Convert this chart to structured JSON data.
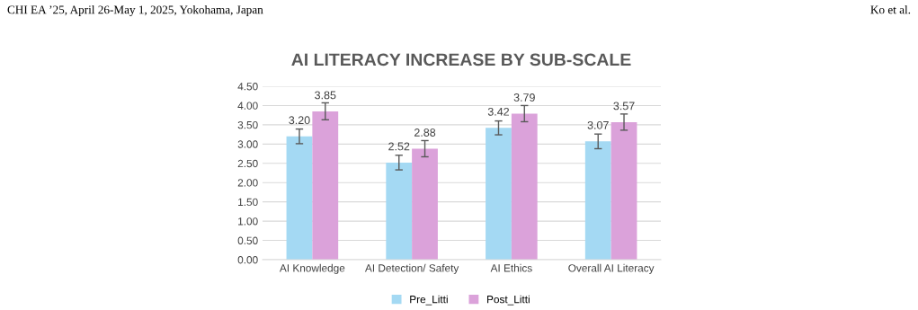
{
  "chart_data": {
    "type": "bar",
    "title": "AI LITERACY INCREASE BY SUB-SCALE",
    "categories": [
      "AI Knowledge",
      "AI Detection/ Safety",
      "AI Ethics",
      "Overall AI Literacy"
    ],
    "series": [
      {
        "name": "Pre_Litti",
        "color": "#a4d9f3",
        "values": [
          3.2,
          2.52,
          3.42,
          3.07
        ],
        "value_labels": [
          "3.20",
          "2.52",
          "3.42",
          "3.07"
        ],
        "errors": [
          0.19,
          0.19,
          0.18,
          0.19
        ]
      },
      {
        "name": "Post_Litti",
        "color": "#dba2da",
        "values": [
          3.85,
          2.88,
          3.79,
          3.57
        ],
        "value_labels": [
          "3.85",
          "2.88",
          "3.79",
          "3.57"
        ],
        "errors": [
          0.22,
          0.21,
          0.21,
          0.21
        ]
      }
    ],
    "ylim": [
      0,
      4.5
    ],
    "yticks": [
      {
        "value": 0,
        "label": "0.00"
      },
      {
        "value": 0.5,
        "label": "0.50"
      },
      {
        "value": 1,
        "label": "1.00"
      },
      {
        "value": 1.5,
        "label": "1.50"
      },
      {
        "value": 2,
        "label": "2.00"
      },
      {
        "value": 2.5,
        "label": "2.50"
      },
      {
        "value": 3,
        "label": "3.00"
      },
      {
        "value": 3.5,
        "label": "3.50"
      },
      {
        "value": 4,
        "label": "4.00"
      },
      {
        "value": 4.5,
        "label": "4.50"
      }
    ],
    "grid": "y",
    "legend": "bottom",
    "annotations": [
      "CHI EA ’25, April 26-May 1, 2025, Yokohama, Japan",
      "Ko et al."
    ]
  }
}
